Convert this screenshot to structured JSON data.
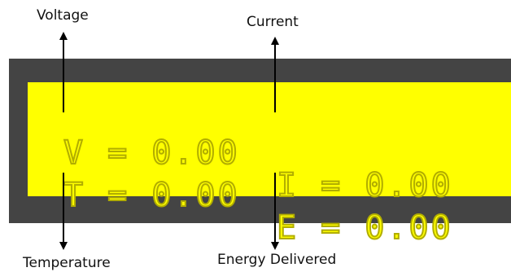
{
  "labels": {
    "voltage": "Voltage",
    "current": "Current",
    "temperature": "Temperature",
    "energy": "Energy Delivered"
  },
  "lcd": {
    "line1_left": "V = 0.00",
    "line1_right": "I = 0.00",
    "line2_left": "T = 0.00",
    "line2_right": "E = 0.00"
  },
  "colors": {
    "bezel": "#444444",
    "screen": "#ffff00",
    "segment": "#b1ad00",
    "arrow": "#000000"
  },
  "icons": [
    "arrow-up-icon",
    "arrow-down-icon"
  ]
}
